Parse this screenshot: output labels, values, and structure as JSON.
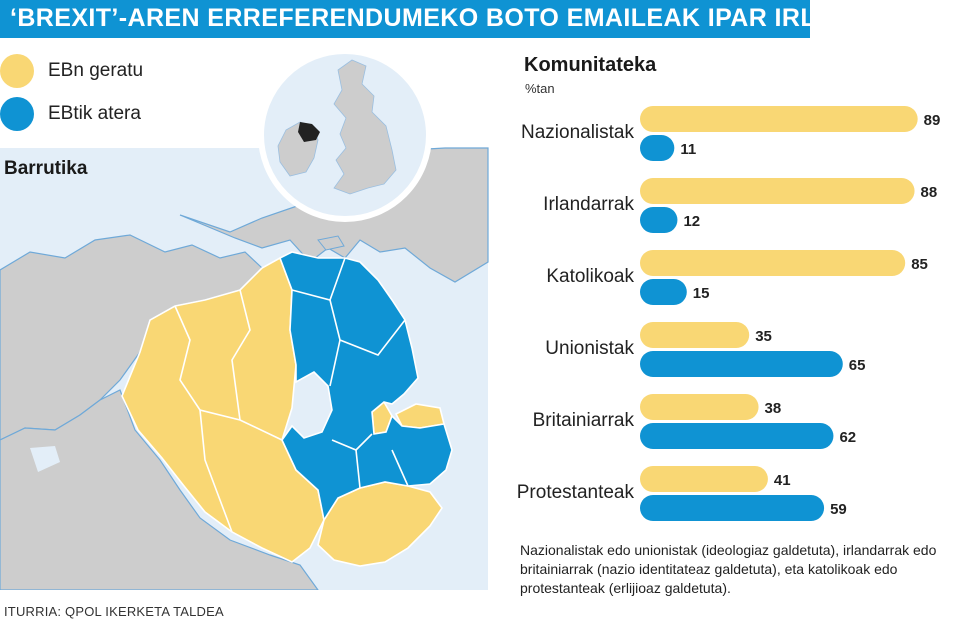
{
  "header": {
    "title": "‘BREXIT’-AREN ERREFERENDUMEKO BOTO EMAILEAK IPAR IRLANDAN"
  },
  "legend": {
    "items": [
      {
        "label": "EBn geratu",
        "color": "#f9d774"
      },
      {
        "label": "EBtik atera",
        "color": "#0f93d3"
      }
    ]
  },
  "map": {
    "title": "Barrutika",
    "colors": {
      "sea": "#e3eef8",
      "land": "#cdcdcd",
      "coast": "#6fa9d8"
    }
  },
  "chart_data": {
    "type": "bar",
    "orientation": "horizontal",
    "title": "Komunitateka",
    "unit_label": "%tan",
    "categories": [
      "Nazionalistak",
      "Irlandarrak",
      "Katolikoak",
      "Unionistak",
      "Britainiarrak",
      "Protestanteak"
    ],
    "series": [
      {
        "name": "EBn geratu",
        "color": "#f9d774",
        "values": [
          89,
          88,
          85,
          35,
          38,
          41
        ]
      },
      {
        "name": "EBtik atera",
        "color": "#0f93d3",
        "values": [
          11,
          12,
          15,
          65,
          62,
          59
        ]
      }
    ],
    "xlim": [
      0,
      100
    ],
    "grid": false,
    "data_labels": true
  },
  "note": "Nazionalistak edo unionistak (ideologiaz galdetuta), irlandarrak edo britainiarrak (nazio identitateaz galdetuta), eta katolikoak edo protestanteak (erlijioaz galdetuta).",
  "source": "ITURRIA: QPOL IKERKETA TALDEA"
}
